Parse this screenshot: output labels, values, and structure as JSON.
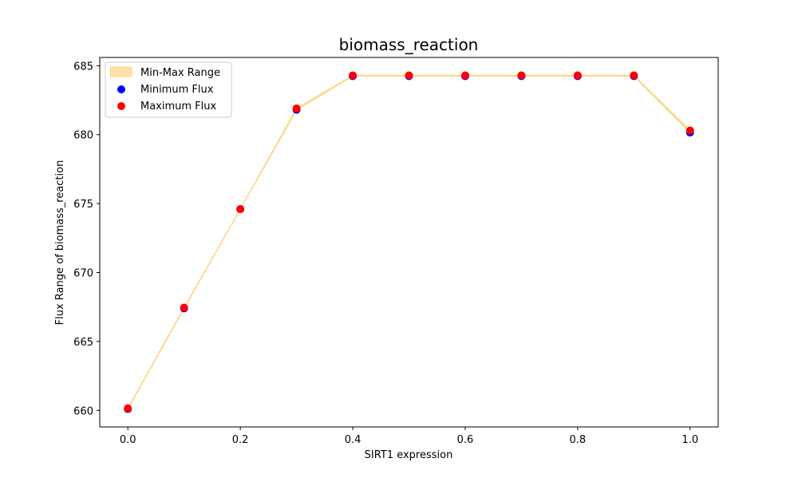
{
  "chart_data": {
    "type": "scatter",
    "title": "biomass_reaction",
    "xlabel": "SIRT1 expression",
    "ylabel": "Flux Range of biomass_reaction",
    "xlim": [
      -0.05,
      1.05
    ],
    "ylim": [
      658.8,
      685.6
    ],
    "xticks": [
      0.0,
      0.2,
      0.4,
      0.6,
      0.8,
      1.0
    ],
    "xtick_labels": [
      "0.0",
      "0.2",
      "0.4",
      "0.6",
      "0.8",
      "1.0"
    ],
    "yticks": [
      660,
      665,
      670,
      675,
      680,
      685
    ],
    "ytick_labels": [
      "660",
      "665",
      "670",
      "675",
      "680",
      "685"
    ],
    "grid": false,
    "legend_position": "top-left",
    "x": [
      0.0,
      0.1,
      0.2,
      0.3,
      0.4,
      0.5,
      0.6,
      0.7,
      0.8,
      0.9,
      1.0
    ],
    "band": {
      "name": "Min-Max Range",
      "color": "#ffe0a6",
      "edge_color": "#ffd78a"
    },
    "series": [
      {
        "name": "Minimum Flux",
        "color": "#0000ff",
        "values": [
          660.1,
          667.4,
          674.6,
          681.8,
          684.25,
          684.25,
          684.25,
          684.25,
          684.25,
          684.25,
          680.15
        ]
      },
      {
        "name": "Maximum Flux",
        "color": "#ff0000",
        "values": [
          660.15,
          667.45,
          674.6,
          681.9,
          684.3,
          684.3,
          684.3,
          684.3,
          684.3,
          684.3,
          680.3
        ]
      }
    ]
  }
}
